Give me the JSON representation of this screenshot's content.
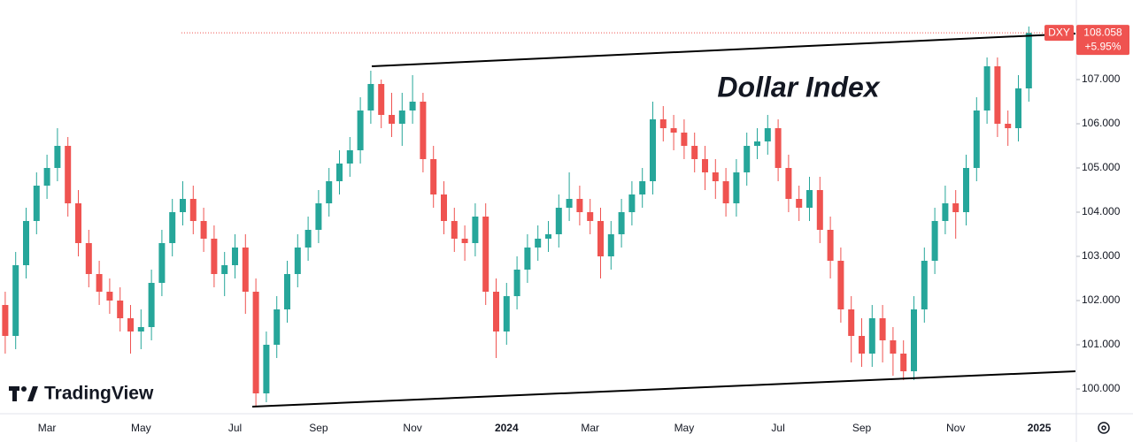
{
  "chart_data": {
    "type": "candlestick",
    "title": "Dollar Index",
    "symbol": "DXY",
    "change_label": "+5.95%",
    "watermark": "TradingView",
    "up_color": "#26a69a",
    "down_color": "#ef5350",
    "categories": [
      null,
      null,
      null,
      null,
      "Mar",
      null,
      null,
      null,
      null,
      null,
      null,
      null,
      null,
      "May",
      null,
      null,
      null,
      null,
      null,
      null,
      null,
      null,
      "Jul",
      null,
      null,
      null,
      null,
      null,
      null,
      null,
      "Sep",
      null,
      null,
      null,
      null,
      null,
      null,
      null,
      null,
      "Nov",
      null,
      null,
      null,
      null,
      null,
      null,
      null,
      null,
      "2024",
      null,
      null,
      null,
      null,
      null,
      null,
      null,
      "Mar",
      null,
      null,
      null,
      null,
      null,
      null,
      null,
      null,
      "May",
      null,
      null,
      null,
      null,
      null,
      null,
      null,
      null,
      "Jul",
      null,
      null,
      null,
      null,
      null,
      null,
      null,
      "Sep",
      null,
      null,
      null,
      null,
      null,
      null,
      null,
      null,
      "Nov",
      null,
      null,
      null,
      null,
      null,
      null,
      null,
      "2025"
    ],
    "open": [
      101.9,
      101.2,
      102.8,
      103.8,
      104.6,
      105.0,
      105.5,
      104.2,
      103.3,
      102.6,
      102.2,
      102.0,
      101.6,
      101.3,
      101.4,
      102.4,
      103.3,
      104.0,
      104.3,
      103.8,
      103.4,
      102.6,
      102.8,
      103.2,
      102.2,
      99.9,
      101.0,
      101.8,
      102.6,
      103.2,
      103.6,
      104.2,
      104.7,
      105.1,
      105.4,
      106.3,
      106.9,
      106.2,
      106.0,
      106.3,
      106.5,
      105.2,
      104.4,
      103.8,
      103.4,
      103.3,
      103.9,
      102.2,
      101.3,
      102.1,
      102.7,
      103.2,
      103.4,
      103.5,
      104.1,
      104.3,
      104.0,
      103.8,
      103.0,
      103.5,
      104.0,
      104.4,
      104.7,
      106.1,
      105.9,
      105.8,
      105.5,
      105.2,
      104.9,
      104.7,
      104.2,
      104.9,
      105.5,
      105.6,
      105.9,
      105.0,
      104.3,
      104.1,
      104.5,
      103.6,
      102.9,
      101.8,
      101.2,
      100.8,
      101.6,
      101.1,
      100.8,
      100.4,
      101.8,
      102.9,
      103.8,
      104.2,
      104.0,
      105.0,
      106.3,
      107.3,
      106.0,
      105.9,
      106.8,
      null
    ],
    "high": [
      102.2,
      103.1,
      104.1,
      104.9,
      105.3,
      105.9,
      105.7,
      104.5,
      103.6,
      102.9,
      102.5,
      102.3,
      101.9,
      101.8,
      102.7,
      103.6,
      104.3,
      104.7,
      104.6,
      104.1,
      103.7,
      103.1,
      103.5,
      103.5,
      102.5,
      101.3,
      102.1,
      102.9,
      103.5,
      103.9,
      104.5,
      105.0,
      105.4,
      105.7,
      106.6,
      107.2,
      107.0,
      106.7,
      106.7,
      107.1,
      106.7,
      105.5,
      104.7,
      104.1,
      103.7,
      104.2,
      104.2,
      102.5,
      102.4,
      103.0,
      103.5,
      103.7,
      103.8,
      104.4,
      104.9,
      104.6,
      104.3,
      104.1,
      103.8,
      104.3,
      104.7,
      105.0,
      106.5,
      106.4,
      106.2,
      106.1,
      105.8,
      105.5,
      105.2,
      105.0,
      105.2,
      105.8,
      105.9,
      106.2,
      106.1,
      105.3,
      104.6,
      104.8,
      104.8,
      103.9,
      103.2,
      102.1,
      101.6,
      101.9,
      101.9,
      101.4,
      101.1,
      102.1,
      103.2,
      104.1,
      104.6,
      104.5,
      105.3,
      106.6,
      107.5,
      107.5,
      106.3,
      107.1,
      108.2,
      null
    ],
    "low": [
      100.8,
      100.9,
      102.5,
      103.5,
      104.3,
      104.7,
      103.9,
      103.0,
      102.3,
      101.9,
      101.7,
      101.3,
      100.8,
      100.9,
      101.1,
      102.1,
      103.0,
      103.7,
      103.5,
      103.1,
      102.3,
      102.1,
      102.5,
      101.7,
      99.6,
      99.7,
      100.7,
      101.5,
      102.3,
      102.9,
      103.3,
      103.9,
      104.4,
      104.8,
      105.1,
      106.0,
      105.9,
      105.7,
      105.5,
      106.0,
      104.9,
      104.1,
      103.5,
      103.1,
      102.9,
      103.0,
      101.9,
      100.7,
      101.0,
      101.8,
      102.4,
      102.9,
      103.1,
      103.2,
      103.8,
      103.7,
      103.5,
      102.5,
      102.7,
      103.2,
      103.7,
      104.1,
      104.4,
      105.6,
      105.4,
      105.2,
      104.9,
      104.5,
      104.3,
      103.9,
      103.9,
      104.6,
      105.2,
      105.3,
      104.7,
      104.0,
      103.8,
      103.8,
      103.3,
      102.5,
      101.5,
      100.6,
      100.5,
      100.5,
      100.6,
      100.3,
      100.2,
      100.2,
      101.5,
      102.6,
      103.5,
      103.4,
      103.7,
      104.7,
      106.0,
      105.7,
      105.5,
      105.6,
      106.5,
      null
    ],
    "close": [
      101.2,
      102.8,
      103.8,
      104.6,
      105.0,
      105.5,
      104.2,
      103.3,
      102.6,
      102.2,
      102.0,
      101.6,
      101.3,
      101.4,
      102.4,
      103.3,
      104.0,
      104.3,
      103.8,
      103.4,
      102.6,
      102.8,
      103.2,
      102.2,
      99.9,
      101.0,
      101.8,
      102.6,
      103.2,
      103.6,
      104.2,
      104.7,
      105.1,
      105.4,
      106.3,
      106.9,
      106.2,
      106.0,
      106.3,
      106.5,
      105.2,
      104.4,
      103.8,
      103.4,
      103.3,
      103.9,
      102.2,
      101.3,
      102.1,
      102.7,
      103.2,
      103.4,
      103.5,
      104.1,
      104.3,
      104.0,
      103.8,
      103.0,
      103.5,
      104.0,
      104.4,
      104.7,
      106.1,
      105.9,
      105.8,
      105.5,
      105.2,
      104.9,
      104.7,
      104.2,
      104.9,
      105.5,
      105.6,
      105.9,
      105.0,
      104.3,
      104.1,
      104.5,
      103.6,
      102.9,
      101.8,
      101.2,
      100.8,
      101.6,
      101.1,
      100.8,
      100.4,
      101.8,
      102.9,
      103.8,
      104.2,
      104.0,
      105.0,
      106.3,
      107.3,
      106.0,
      105.9,
      106.8,
      108.058,
      null
    ],
    "ylim": [
      99.44,
      108.8
    ],
    "yticks": [
      {
        "value": 100,
        "label": "100.000"
      },
      {
        "value": 101,
        "label": "101.000"
      },
      {
        "value": 102,
        "label": "102.000"
      },
      {
        "value": 103,
        "label": "103.000"
      },
      {
        "value": 104,
        "label": "104.000"
      },
      {
        "value": 105,
        "label": "105.000"
      },
      {
        "value": 106,
        "label": "106.000"
      },
      {
        "value": 107,
        "label": "107.000"
      }
    ],
    "grid": false
  }
}
